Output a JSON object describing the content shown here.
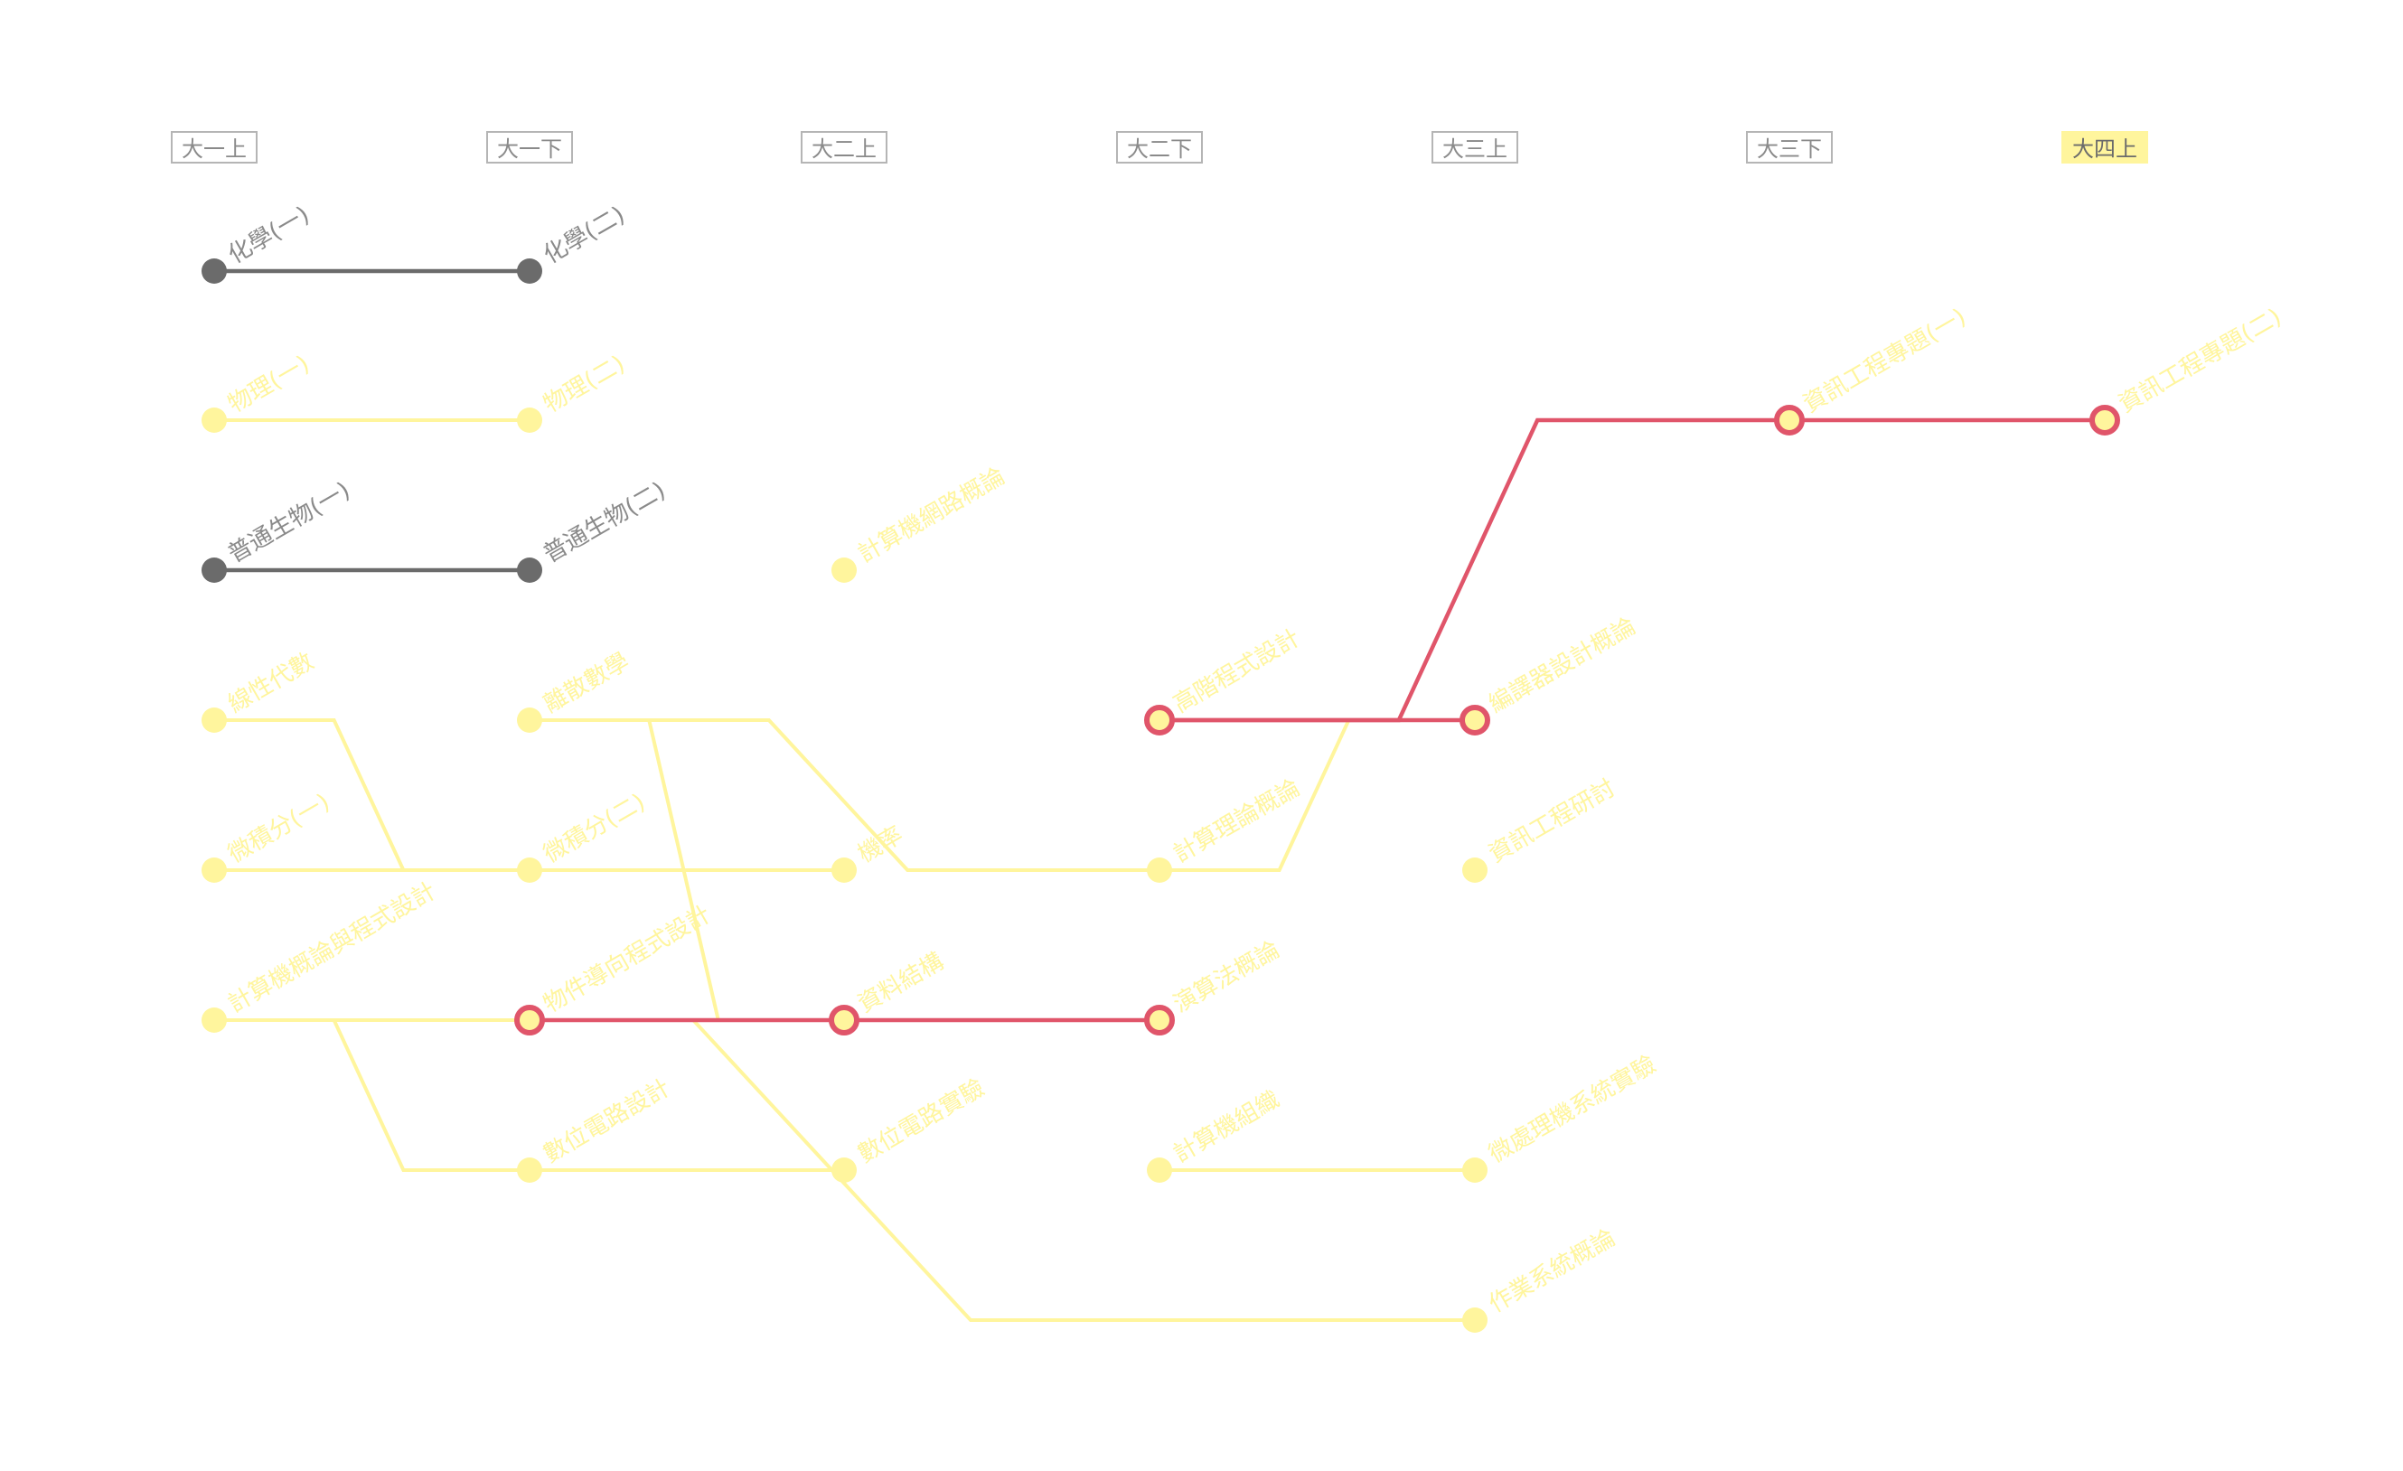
{
  "semesters": [
    {
      "label": "大一上",
      "active": false
    },
    {
      "label": "大一下",
      "active": false
    },
    {
      "label": "大二上",
      "active": false
    },
    {
      "label": "大二下",
      "active": false
    },
    {
      "label": "大三上",
      "active": false
    },
    {
      "label": "大三下",
      "active": false
    },
    {
      "label": "大四上",
      "active": true
    }
  ],
  "colors": {
    "completed": "#6b6b6b",
    "pending": "#fff59d",
    "highlight": "#e0556a",
    "completed_text": "#8a8a8a",
    "pending_text": "#fff59d"
  },
  "courses": [
    {
      "id": "chem1",
      "label": "化學(一)",
      "semester": 0,
      "row": 0,
      "status": "completed"
    },
    {
      "id": "chem2",
      "label": "化學(二)",
      "semester": 1,
      "row": 0,
      "status": "completed"
    },
    {
      "id": "phys1",
      "label": "物理(一)",
      "semester": 0,
      "row": 1,
      "status": "pending"
    },
    {
      "id": "phys2",
      "label": "物理(二)",
      "semester": 1,
      "row": 1,
      "status": "pending"
    },
    {
      "id": "bio1",
      "label": "普通生物(一)",
      "semester": 0,
      "row": 2,
      "status": "completed"
    },
    {
      "id": "bio2",
      "label": "普通生物(二)",
      "semester": 1,
      "row": 2,
      "status": "completed"
    },
    {
      "id": "intro_cs",
      "label": "計算機網路概論",
      "semester": 2,
      "row": 2,
      "status": "pending"
    },
    {
      "id": "linalg",
      "label": "線性代數",
      "semester": 0,
      "row": 3,
      "status": "pending"
    },
    {
      "id": "discrete",
      "label": "離散數學",
      "semester": 1,
      "row": 3,
      "status": "pending"
    },
    {
      "id": "adv_prog",
      "label": "高階程式設計",
      "semester": 3,
      "row": 3,
      "status": "highlight"
    },
    {
      "id": "compiler",
      "label": "編譯器設計概論",
      "semester": 4,
      "row": 3,
      "status": "highlight"
    },
    {
      "id": "calc1",
      "label": "微積分(一)",
      "semester": 0,
      "row": 4,
      "status": "pending"
    },
    {
      "id": "calc2",
      "label": "微積分(二)",
      "semester": 1,
      "row": 4,
      "status": "pending"
    },
    {
      "id": "prob",
      "label": "機率",
      "semester": 2,
      "row": 4,
      "status": "pending"
    },
    {
      "id": "theory",
      "label": "計算理論概論",
      "semester": 3,
      "row": 4,
      "status": "pending"
    },
    {
      "id": "se",
      "label": "資訊工程研討",
      "semester": 4,
      "row": 4,
      "status": "pending"
    },
    {
      "id": "prog",
      "label": "計算機概論與程式設計",
      "semester": 0,
      "row": 5,
      "status": "pending"
    },
    {
      "id": "oop",
      "label": "物件導向程式設計",
      "semester": 1,
      "row": 5,
      "status": "highlight"
    },
    {
      "id": "ds",
      "label": "資料結構",
      "semester": 2,
      "row": 5,
      "status": "highlight"
    },
    {
      "id": "algo",
      "label": "演算法概論",
      "semester": 3,
      "row": 5,
      "status": "highlight"
    },
    {
      "id": "digital",
      "label": "數位電路設計",
      "semester": 1,
      "row": 6,
      "status": "pending"
    },
    {
      "id": "digital_lab",
      "label": "數位電路實驗",
      "semester": 2,
      "row": 6,
      "status": "pending"
    },
    {
      "id": "arch",
      "label": "計算機組織",
      "semester": 3,
      "row": 6,
      "status": "pending"
    },
    {
      "id": "micro_lab",
      "label": "微處理機系統實驗",
      "semester": 4,
      "row": 6,
      "status": "pending"
    },
    {
      "id": "os",
      "label": "作業系統概論",
      "semester": 4,
      "row": 7,
      "status": "pending"
    },
    {
      "id": "proj1",
      "label": "資訊工程專題(一)",
      "semester": 5,
      "row": 1,
      "status": "highlight"
    },
    {
      "id": "proj2",
      "label": "資訊工程專題(二)",
      "semester": 6,
      "row": 1,
      "status": "highlight"
    }
  ],
  "links": [
    {
      "from": "chem1",
      "to": "chem2",
      "status": "completed"
    },
    {
      "from": "bio1",
      "to": "bio2",
      "status": "completed"
    },
    {
      "from": "phys1",
      "to": "phys2",
      "status": "pending"
    },
    {
      "from": "linalg",
      "to": "calc2",
      "status": "pending"
    },
    {
      "from": "calc1",
      "to": "calc2",
      "status": "pending"
    },
    {
      "from": "calc2",
      "to": "prob",
      "status": "pending"
    },
    {
      "from": "discrete",
      "to": "theory",
      "status": "pending"
    },
    {
      "from": "discrete",
      "to": "ds",
      "status": "pending"
    },
    {
      "from": "theory",
      "to": "compiler",
      "status": "pending"
    },
    {
      "from": "prog",
      "to": "oop",
      "status": "pending"
    },
    {
      "from": "prog",
      "to": "digital",
      "status": "pending"
    },
    {
      "from": "prog",
      "to": "os",
      "status": "pending"
    },
    {
      "from": "digital",
      "to": "digital_lab",
      "status": "pending"
    },
    {
      "from": "arch",
      "to": "micro_lab",
      "status": "pending"
    },
    {
      "from": "oop",
      "to": "ds",
      "status": "highlight"
    },
    {
      "from": "ds",
      "to": "algo",
      "status": "highlight"
    },
    {
      "from": "adv_prog",
      "to": "compiler",
      "status": "highlight"
    },
    {
      "from": "adv_prog",
      "to": "proj1",
      "status": "highlight"
    },
    {
      "from": "proj1",
      "to": "proj2",
      "status": "highlight"
    }
  ]
}
